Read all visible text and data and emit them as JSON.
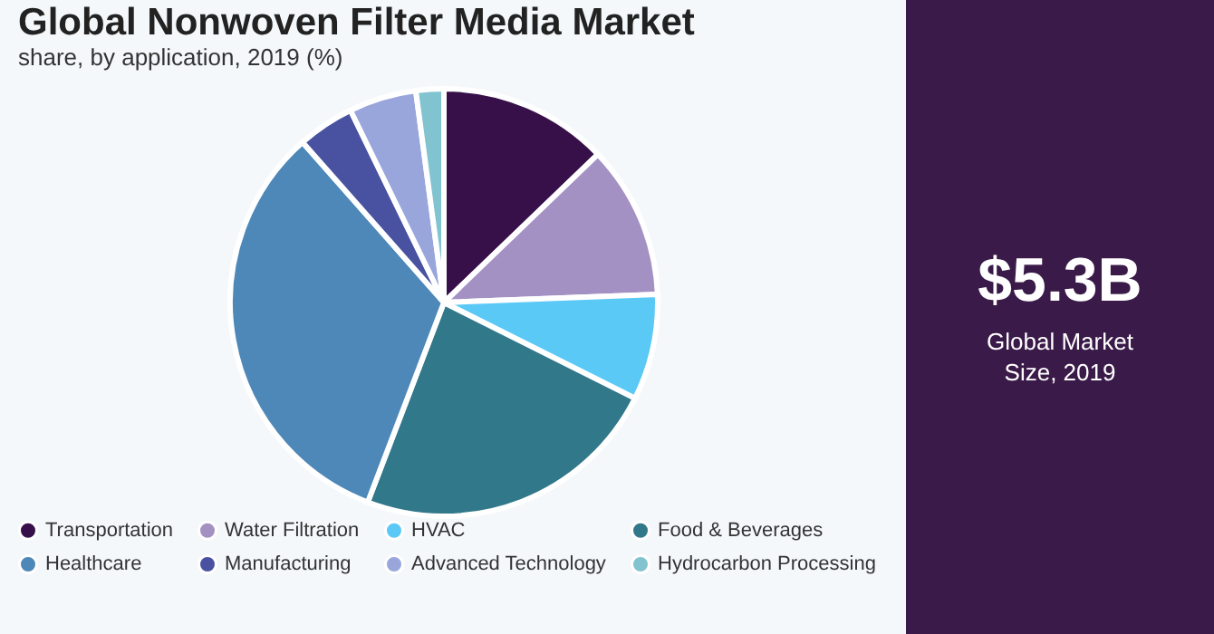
{
  "chart_data": {
    "type": "pie",
    "title": "Global Nonwoven Filter Media Market",
    "subtitle": "share, by application, 2019 (%)",
    "categories": [
      "Transportation",
      "Water Filtration",
      "HVAC",
      "Food & Beverages",
      "Healthcare",
      "Manufacturing",
      "Advanced Technology",
      "Hydrocarbon Processing"
    ],
    "values": [
      12.8,
      11.6,
      8.0,
      23.4,
      32.7,
      4.3,
      5.1,
      2.1
    ],
    "colors": [
      "#37104a",
      "#a491c4",
      "#5bc9f5",
      "#31788a",
      "#4d88b8",
      "#4852a0",
      "#98a6dc",
      "#82c3d0"
    ],
    "legend": "bottom",
    "annotations": [
      "$5.3B",
      "Global Market Size, 2019"
    ]
  }
}
